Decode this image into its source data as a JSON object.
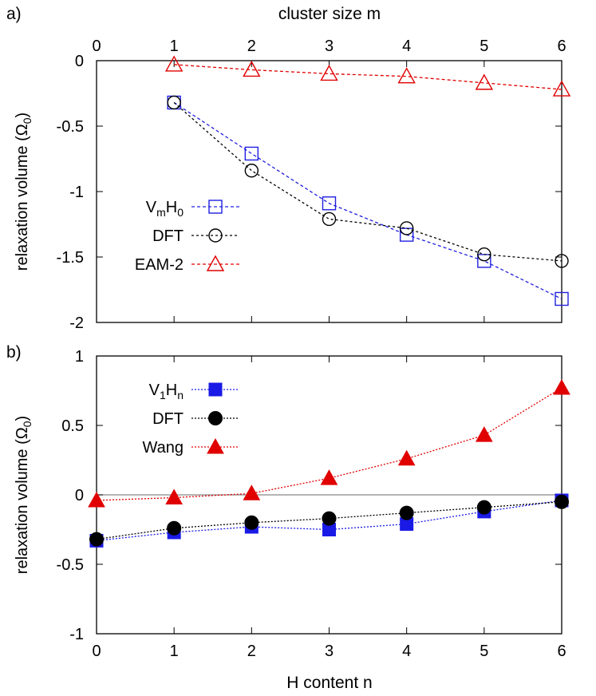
{
  "figure": {
    "top_axis_label": "cluster size m",
    "bottom_axis_label": "H content n"
  },
  "chart_data": [
    {
      "panel_label": "a)",
      "type": "line",
      "x": [
        0,
        1,
        2,
        3,
        4,
        5,
        6
      ],
      "xlim": [
        0,
        6
      ],
      "ylim": [
        -2,
        0
      ],
      "x_ticks": [
        "0",
        "1",
        "2",
        "3",
        "4",
        "5",
        "6"
      ],
      "y_ticks": [
        "0",
        "-0.5",
        "-1",
        "-1.5",
        "-2"
      ],
      "ylabel": "relaxation volume (Ω",
      "ylabel_sub": "0",
      "ylabel_end": ")",
      "legend_position": "middle-left",
      "series": [
        {
          "name": "VmH0",
          "label_parts": [
            [
              "V",
              ""
            ],
            [
              "m",
              "sub"
            ],
            [
              "H",
              ""
            ],
            [
              "0",
              "sub"
            ]
          ],
          "color": "#2020e0",
          "marker": "open-square",
          "dash": "4 3",
          "x": [
            1,
            2,
            3,
            4,
            5,
            6
          ],
          "values": [
            -0.32,
            -0.71,
            -1.09,
            -1.33,
            -1.53,
            -1.82
          ]
        },
        {
          "name": "DFT",
          "label_parts": [
            [
              "DFT",
              ""
            ]
          ],
          "color": "#000000",
          "marker": "open-circle",
          "dash": "3 3",
          "x": [
            1,
            2,
            3,
            4,
            5,
            6
          ],
          "values": [
            -0.32,
            -0.84,
            -1.21,
            -1.28,
            -1.48,
            -1.53
          ]
        },
        {
          "name": "EAM-2",
          "label_parts": [
            [
              "EAM-2",
              ""
            ]
          ],
          "color": "#e00000",
          "marker": "open-triangle",
          "dash": "4 3",
          "x": [
            1,
            2,
            3,
            4,
            5,
            6
          ],
          "values": [
            -0.03,
            -0.07,
            -0.1,
            -0.12,
            -0.17,
            -0.22
          ]
        }
      ]
    },
    {
      "panel_label": "b)",
      "type": "line",
      "x": [
        0,
        1,
        2,
        3,
        4,
        5,
        6
      ],
      "xlim": [
        0,
        6
      ],
      "ylim": [
        -1,
        1
      ],
      "x_ticks": [
        "0",
        "1",
        "2",
        "3",
        "4",
        "5",
        "6"
      ],
      "y_ticks": [
        "1",
        "0.5",
        "0",
        "-0.5",
        "-1"
      ],
      "ylabel": "relaxation volume (Ω",
      "ylabel_sub": "0",
      "ylabel_end": ")",
      "zero_line": true,
      "legend_position": "top-left",
      "series": [
        {
          "name": "V1Hn",
          "label_parts": [
            [
              "V",
              ""
            ],
            [
              "1",
              "sub"
            ],
            [
              "H",
              ""
            ],
            [
              "n",
              "sub"
            ]
          ],
          "color": "#1a1ae6",
          "marker": "filled-square",
          "dash": "2 2",
          "x": [
            0,
            1,
            2,
            3,
            4,
            5,
            6
          ],
          "values": [
            -0.33,
            -0.27,
            -0.23,
            -0.25,
            -0.21,
            -0.12,
            -0.04
          ]
        },
        {
          "name": "DFT",
          "label_parts": [
            [
              "DFT",
              ""
            ]
          ],
          "color": "#000000",
          "marker": "filled-circle",
          "dash": "2 2",
          "x": [
            0,
            1,
            2,
            3,
            4,
            5,
            6
          ],
          "values": [
            -0.32,
            -0.24,
            -0.2,
            -0.17,
            -0.13,
            -0.09,
            -0.05
          ]
        },
        {
          "name": "Wang",
          "label_parts": [
            [
              "Wang",
              ""
            ]
          ],
          "color": "#e00000",
          "marker": "filled-triangle",
          "dash": "2 2",
          "x": [
            0,
            1,
            2,
            3,
            4,
            5,
            6
          ],
          "values": [
            -0.04,
            -0.02,
            0.01,
            0.12,
            0.26,
            0.43,
            0.77
          ]
        }
      ]
    }
  ]
}
